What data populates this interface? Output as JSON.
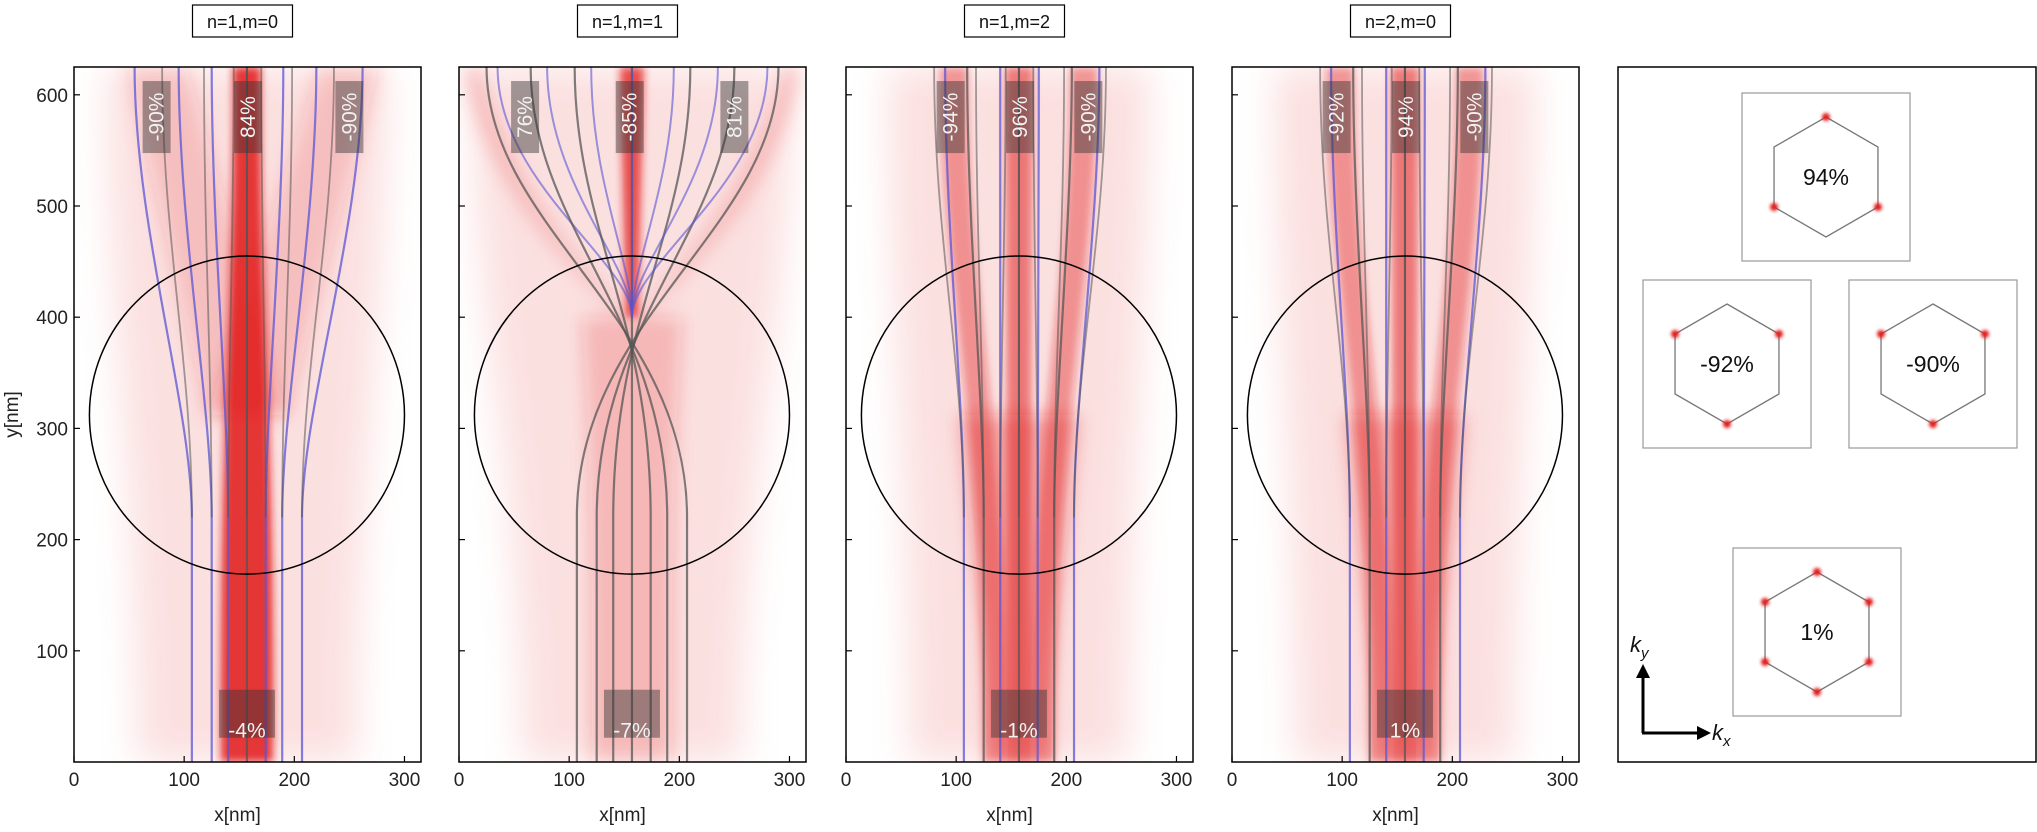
{
  "chart_data": {
    "type": "heatmap",
    "subplots": [
      {
        "title": "n=1,m=0",
        "top_labels": [
          "-90%",
          "84%",
          "-90%"
        ],
        "bottom_label": "-4%",
        "top_x": [
          75,
          158,
          250
        ],
        "beam": "focused",
        "show_ylabel": true
      },
      {
        "title": "n=1,m=1",
        "top_labels": [
          "76%",
          "-85%",
          "81%"
        ],
        "bottom_label": "-7%",
        "top_x": [
          60,
          155,
          250
        ],
        "beam": "crossed",
        "show_ylabel": false
      },
      {
        "title": "n=1,m=2",
        "top_labels": [
          "-94%",
          "96%",
          "-90%"
        ],
        "bottom_label": "-1%",
        "top_x": [
          95,
          158,
          220
        ],
        "beam": "braided",
        "show_ylabel": false
      },
      {
        "title": "n=2,m=0",
        "top_labels": [
          "-92%",
          "94%",
          "-90%"
        ],
        "bottom_label": "1%",
        "top_x": [
          95,
          158,
          220
        ],
        "beam": "braided",
        "show_ylabel": false
      }
    ],
    "xlabel": "x[nm]",
    "ylabel": "y[nm]",
    "xlim": [
      0,
      315
    ],
    "ylim": [
      0,
      625
    ],
    "xticks": [
      0,
      100,
      200,
      300
    ],
    "yticks": [
      100,
      200,
      300,
      400,
      500,
      600
    ],
    "circle": {
      "cx": 157,
      "cy": 312,
      "r": 143
    },
    "grid": false,
    "colors": {
      "beam": "#e21b1b",
      "trajectory_blue": "#5a55d6",
      "trajectory_gray": "#555555"
    }
  },
  "kspace": {
    "hexagons": [
      {
        "label": "94%",
        "dots": [
          0,
          2,
          4
        ]
      },
      {
        "label": "-92%",
        "dots": [
          1,
          3,
          5
        ]
      },
      {
        "label": "-90%",
        "dots": [
          1,
          3,
          5
        ]
      },
      {
        "label": "1%",
        "dots": [
          0,
          1,
          2,
          3,
          4,
          5
        ]
      }
    ],
    "axis_x_label": "k",
    "axis_x_sub": "x",
    "axis_y_label": "k",
    "axis_y_sub": "y"
  }
}
